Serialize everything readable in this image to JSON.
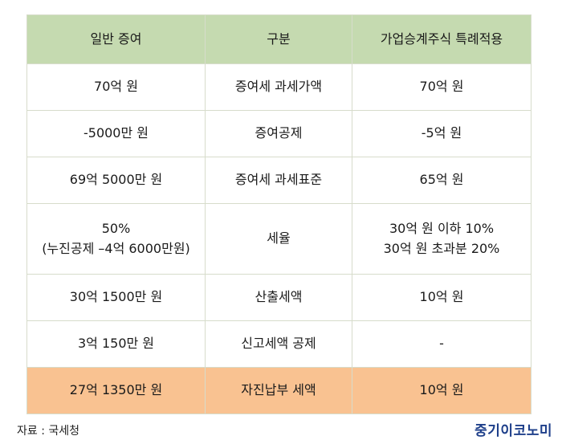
{
  "header": {
    "col1": "일반 증여",
    "col2": "구분",
    "col3": "가업승계주식 특례적용"
  },
  "rows": [
    {
      "general": [
        "70억 원"
      ],
      "category": "증여세 과세가액",
      "special": [
        "70억 원"
      ]
    },
    {
      "general": [
        "-5000만 원"
      ],
      "category": "증여공제",
      "special": [
        "-5억 원"
      ]
    },
    {
      "general": [
        "69억 5000만 원"
      ],
      "category": "증여세 과세표준",
      "special": [
        "65억 원"
      ]
    },
    {
      "general": [
        "50%",
        "(누진공제 –4억 6000만원)"
      ],
      "category": "세율",
      "special": [
        "30억 원 이하 10%",
        "30억 원 초과분 20%"
      ]
    },
    {
      "general": [
        "30억 1500만 원"
      ],
      "category": "산출세액",
      "special": [
        "10억 원"
      ]
    },
    {
      "general": [
        "3억 150만 원"
      ],
      "category": "신고세액 공제",
      "special": [
        "-"
      ]
    },
    {
      "general": [
        "27억 1350만 원"
      ],
      "category": "자진납부 세액",
      "special": [
        "10억 원"
      ]
    }
  ],
  "colors": {
    "header_bg": "#c5dab0",
    "highlight_bg": "#f9c291",
    "brand": "#1e3f8a"
  },
  "footer": {
    "source": "자료 : 국세청",
    "brand": "중기이코노미"
  }
}
